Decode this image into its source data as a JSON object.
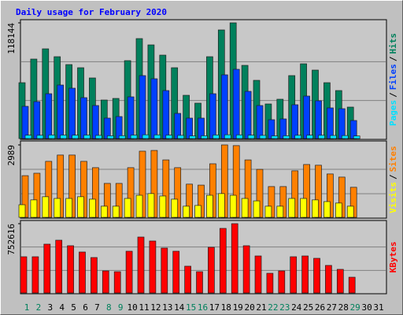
{
  "chart_data": {
    "type": "bar",
    "title": "Daily usage for February 2020",
    "categories": [
      "1",
      "2",
      "3",
      "4",
      "5",
      "6",
      "7",
      "8",
      "9",
      "10",
      "11",
      "12",
      "13",
      "14",
      "15",
      "16",
      "17",
      "18",
      "19",
      "20",
      "21",
      "22",
      "23",
      "24",
      "25",
      "26",
      "27",
      "28",
      "29",
      "30",
      "31"
    ],
    "category_colors": [
      "#00805c",
      "#00805c",
      "#000000",
      "#000000",
      "#000000",
      "#000000",
      "#000000",
      "#00805c",
      "#00805c",
      "#000000",
      "#000000",
      "#000000",
      "#000000",
      "#000000",
      "#00805c",
      "#00805c",
      "#000000",
      "#000000",
      "#000000",
      "#000000",
      "#000000",
      "#00805c",
      "#00805c",
      "#000000",
      "#000000",
      "#000000",
      "#000000",
      "#000000",
      "#00805c",
      "#000000",
      "#000000"
    ],
    "separator": "/",
    "panels": [
      {
        "ylim": [
          0,
          118144
        ],
        "yticks": [
          118144
        ],
        "series": [
          {
            "name": "Hits",
            "color": "#00805c",
            "values": [
              57060,
              81170,
              91620,
              83590,
              75550,
              72330,
              61890,
              39380,
              40990,
              79570,
              102070,
              95640,
              85190,
              72330,
              44200,
              36170,
              83590,
              110910,
              118144,
              74740,
              59470,
              35360,
              40190,
              64300,
              76350,
              69920,
              57060,
              49030,
              32150,
              null,
              null
            ]
          },
          {
            "name": "Files",
            "color": "#0040ff",
            "values": [
              32950,
              37770,
              45810,
              54650,
              51440,
              41790,
              33760,
              20900,
              22500,
              42600,
              64300,
              61080,
              49030,
              25720,
              20900,
              20900,
              45810,
              65100,
              70730,
              48220,
              33760,
              19290,
              20090,
              34560,
              43400,
              38580,
              31340,
              30540,
              18480,
              null,
              null
            ]
          },
          {
            "name": "Pages",
            "color": "#00e0ff",
            "values": [
              3500,
              3400,
              3700,
              3600,
              3500,
              3600,
              3300,
              2900,
              3000,
              3600,
              3900,
              3800,
              3600,
              3300,
              2800,
              2900,
              3700,
              3900,
              3800,
              3500,
              3300,
              2800,
              2900,
              3400,
              3500,
              3400,
              3200,
              3100,
              2700,
              null,
              null
            ]
          }
        ]
      },
      {
        "ylim": [
          0,
          2989
        ],
        "yticks": [
          2989
        ],
        "series": [
          {
            "name": "Sites",
            "color": "#ff8000",
            "values": [
              1720,
              1820,
              2310,
              2570,
              2570,
              2310,
              2050,
              1400,
              1400,
              2050,
              2730,
              2760,
              2370,
              2050,
              1370,
              1330,
              2210,
              2989,
              2960,
              2370,
              1980,
              1270,
              1270,
              1920,
              2180,
              2150,
              1790,
              1660,
              1240,
              null,
              null
            ]
          },
          {
            "name": "Visits",
            "color": "#ffff00",
            "values": [
              520,
              720,
              850,
              780,
              780,
              850,
              750,
              460,
              460,
              780,
              910,
              980,
              880,
              750,
              460,
              490,
              910,
              980,
              910,
              780,
              680,
              460,
              460,
              780,
              780,
              720,
              650,
              590,
              460,
              null,
              null
            ]
          }
        ]
      },
      {
        "ylim": [
          0,
          752616
        ],
        "yticks": [
          752616
        ],
        "series": [
          {
            "name": "KBytes",
            "color": "#ff0000",
            "values": [
              393400,
              393400,
              530200,
              573000,
              513100,
              444700,
              384800,
              239500,
              230900,
              453300,
              607200,
              564400,
              487500,
              453300,
              290800,
              230900,
              496000,
              701300,
              752616,
              513100,
              401900,
              213800,
              239500,
              393400,
              401900,
              376300,
              299300,
              256600,
              171000,
              null,
              null
            ]
          }
        ]
      }
    ]
  }
}
